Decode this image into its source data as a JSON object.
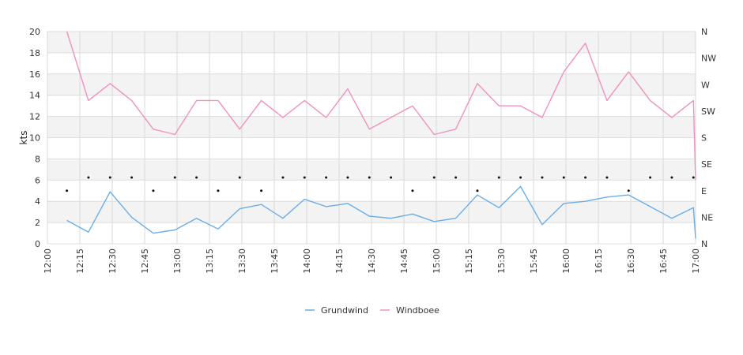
{
  "chart_data": {
    "type": "line",
    "title": "",
    "ylabel": "kts",
    "ylim": [
      0,
      20
    ],
    "y_ticks": [
      0,
      2,
      4,
      6,
      8,
      10,
      12,
      14,
      16,
      18,
      20
    ],
    "x_ticks": [
      "12:00",
      "12:15",
      "12:30",
      "12:45",
      "13:00",
      "13:15",
      "13:30",
      "13:45",
      "14:00",
      "14:15",
      "14:30",
      "14:45",
      "15:00",
      "15:15",
      "15:30",
      "15:45",
      "16:00",
      "16:15",
      "16:30",
      "16:45",
      "17:00"
    ],
    "xlim": [
      "12:00",
      "17:00"
    ],
    "y2_ticks": [
      "N",
      "NE",
      "E",
      "SE",
      "S",
      "SW",
      "W",
      "NW",
      "N"
    ],
    "y2_range_deg": [
      0,
      360
    ],
    "x": [
      "12:09",
      "12:19",
      "12:29",
      "12:39",
      "12:49",
      "12:59",
      "13:09",
      "13:19",
      "13:29",
      "13:39",
      "13:49",
      "13:59",
      "14:09",
      "14:19",
      "14:29",
      "14:39",
      "14:49",
      "14:59",
      "15:09",
      "15:19",
      "15:29",
      "15:39",
      "15:49",
      "15:59",
      "16:09",
      "16:19",
      "16:29",
      "16:39",
      "16:49",
      "16:59",
      "17:00"
    ],
    "series": [
      {
        "name": "Grundwind",
        "color": "#6aaee8",
        "values": [
          2.2,
          1.1,
          4.9,
          2.5,
          1.0,
          1.3,
          2.4,
          1.4,
          3.3,
          3.7,
          2.4,
          4.2,
          3.5,
          3.8,
          2.6,
          2.4,
          2.8,
          2.1,
          2.4,
          4.6,
          3.4,
          5.4,
          1.8,
          3.8,
          4.0,
          4.4,
          4.6,
          3.5,
          2.4,
          3.4,
          0.5
        ]
      },
      {
        "name": "Windboee",
        "color": "#ef92bf",
        "values": [
          20.0,
          13.5,
          15.1,
          13.5,
          10.8,
          10.3,
          13.5,
          13.5,
          10.8,
          13.5,
          11.9,
          13.5,
          11.9,
          14.6,
          10.8,
          11.9,
          13.0,
          10.3,
          10.8,
          15.1,
          13.0,
          13.0,
          11.9,
          16.2,
          18.9,
          13.5,
          16.2,
          13.5,
          11.9,
          13.5,
          6.0
        ]
      }
    ],
    "direction_points": {
      "color": "#111111",
      "x": [
        "12:09",
        "12:19",
        "12:29",
        "12:39",
        "12:49",
        "12:59",
        "13:09",
        "13:19",
        "13:29",
        "13:39",
        "13:49",
        "13:59",
        "14:09",
        "14:19",
        "14:29",
        "14:39",
        "14:49",
        "14:59",
        "15:09",
        "15:19",
        "15:29",
        "15:39",
        "15:49",
        "15:59",
        "16:09",
        "16:19",
        "16:29",
        "16:39",
        "16:49",
        "16:59"
      ],
      "compass": [
        "E",
        "ESE",
        "ESE",
        "ESE",
        "E",
        "ESE",
        "ESE",
        "E",
        "ESE",
        "E",
        "ESE",
        "ESE",
        "ESE",
        "ESE",
        "ESE",
        "ESE",
        "E",
        "ESE",
        "ESE",
        "E",
        "ESE",
        "ESE",
        "ESE",
        "ESE",
        "ESE",
        "ESE",
        "E",
        "ESE",
        "ESE",
        "ESE"
      ]
    },
    "grid": true,
    "banded_background": true,
    "legend_position": "bottom-center"
  }
}
